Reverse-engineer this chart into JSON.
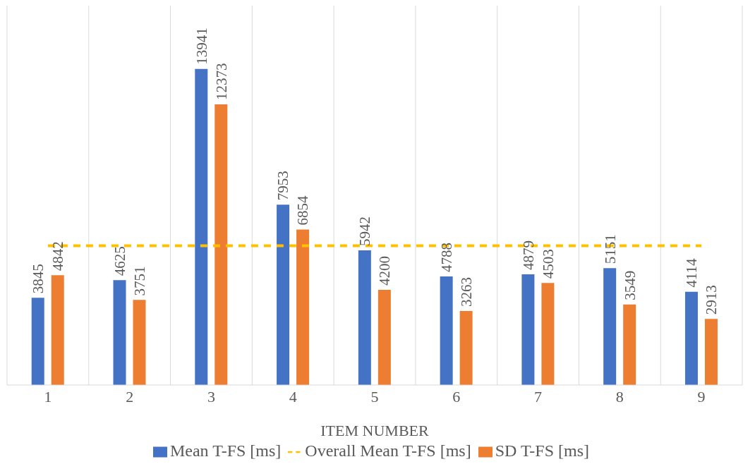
{
  "chart_data": {
    "type": "bar",
    "xlabel": "ITEM NUMBER",
    "categories": [
      "1",
      "2",
      "3",
      "4",
      "5",
      "6",
      "7",
      "8",
      "9"
    ],
    "series": [
      {
        "name": "Mean T-FS [ms]",
        "color": "#4472c4",
        "values": [
          3845,
          4625,
          13941,
          7953,
          5942,
          4788,
          4879,
          5151,
          4114
        ],
        "value_labels": [
          "3845",
          "4625",
          "13941",
          "7953",
          "5942",
          "4788",
          "4879",
          "5151",
          "4114"
        ]
      },
      {
        "name": "SD T-FS [ms]",
        "color": "#ed7d31",
        "values": [
          4842,
          3751,
          12373,
          6854,
          4200,
          3263,
          4503,
          3549,
          2913
        ],
        "value_labels": [
          "4842",
          "3751",
          "12373",
          "6854",
          "4200",
          "3263",
          "4503",
          "3549",
          "2913"
        ]
      },
      {
        "name": "Overall Mean T-FS  [ms]",
        "type": "line",
        "color": "#ffc000",
        "line_style": "dashed",
        "marker": "none",
        "values": [
          6138,
          6138,
          6138,
          6138,
          6138,
          6138,
          6138,
          6138,
          6138
        ]
      }
    ],
    "grid": "x",
    "legend": "bottom",
    "tick_labels": "x"
  }
}
